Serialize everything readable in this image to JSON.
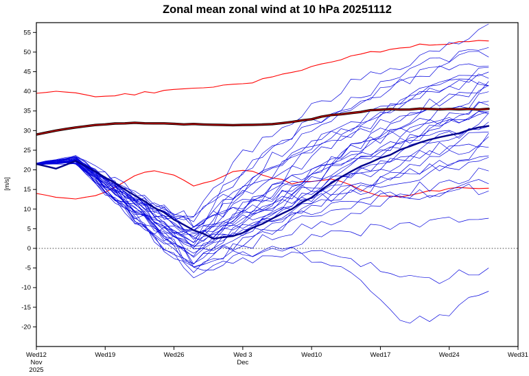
{
  "chart_data": {
    "type": "line",
    "title": "Zonal mean zonal wind at 10 hPa 20251112",
    "ylabel": "[m/s]",
    "xlabel": "",
    "x_unit": "days since 2025-11-12",
    "xlim": [
      0,
      49
    ],
    "ylim": [
      -25,
      57.5
    ],
    "grid": false,
    "zero_line": 0,
    "y_ticks": [
      -20,
      -15,
      -10,
      -5,
      0,
      5,
      10,
      15,
      20,
      25,
      30,
      35,
      40,
      45,
      50,
      55
    ],
    "x_ticks": [
      {
        "day": 0,
        "label": "Wed12",
        "sub": [
          "Nov",
          "2025"
        ]
      },
      {
        "day": 7,
        "label": "Wed19",
        "sub": []
      },
      {
        "day": 14,
        "label": "Wed26",
        "sub": []
      },
      {
        "day": 21,
        "label": "Wed 3",
        "sub": [
          "Dec"
        ]
      },
      {
        "day": 28,
        "label": "Wed10",
        "sub": []
      },
      {
        "day": 35,
        "label": "Wed17",
        "sub": []
      },
      {
        "day": 42,
        "label": "Wed24",
        "sub": []
      },
      {
        "day": 49,
        "label": "Wed31",
        "sub": []
      }
    ],
    "colors": {
      "background": "#ffffff",
      "axis": "#000000",
      "ensemble_member": "#0000dd",
      "ensemble_mean": "#00008b",
      "climatology_mean": "#aa0000",
      "climatology_mean_edge": "#000000",
      "climatology_band": "#ff0000"
    },
    "series": {
      "sample_days_2d": [
        0,
        2,
        4,
        6,
        8,
        10,
        12,
        14,
        16,
        18,
        20,
        22,
        24,
        26,
        28,
        30,
        32,
        34,
        36,
        38,
        40,
        42,
        44,
        46
      ],
      "climatology_mean": [
        29,
        30,
        30.8,
        31.4,
        31.8,
        32,
        31.9,
        31.7,
        31.6,
        31.5,
        31.4,
        31.4,
        31.6,
        32.2,
        33,
        33.9,
        34.6,
        35.1,
        35.4,
        35.5,
        35.5,
        35.4,
        35.5,
        35.5
      ],
      "climatology_upper": [
        39.5,
        40,
        39.6,
        38.6,
        38.9,
        39.4,
        39.9,
        40.3,
        40.8,
        41.2,
        41.7,
        42.5,
        43.6,
        44.8,
        46.2,
        47.6,
        48.8,
        49.8,
        50.7,
        51.5,
        52,
        52.2,
        52.6,
        53
      ],
      "climatology_lower": [
        14,
        13,
        12.6,
        13.4,
        15.4,
        18.3,
        19.8,
        18.6,
        16.2,
        17.3,
        19.4,
        19.8,
        18.2,
        16.6,
        16.9,
        17.4,
        16.2,
        14.2,
        13,
        13.4,
        14.4,
        15.4,
        15.1,
        15
      ],
      "ensemble_mean": [
        21.5,
        20.3,
        22.3,
        19.5,
        16.5,
        13.5,
        10.5,
        7.5,
        4.5,
        2.5,
        3,
        5,
        7.5,
        10,
        13,
        16.5,
        19.5,
        22,
        24,
        26,
        27.5,
        28.7,
        30,
        31.2
      ],
      "member_sample_days": [
        0,
        4,
        8,
        12,
        16,
        20,
        24,
        28,
        32,
        36,
        40,
        44,
        46
      ],
      "ensemble_members": [
        [
          21.6,
          23.0,
          16,
          9,
          8,
          22,
          30,
          36,
          42,
          46,
          50,
          54,
          56
        ],
        [
          21.4,
          22.0,
          14,
          6,
          4,
          18,
          26,
          32,
          38,
          43,
          47,
          51,
          52
        ],
        [
          21.7,
          23.5,
          17,
          8,
          0,
          14,
          23,
          30,
          36,
          41,
          45,
          49,
          50
        ],
        [
          21.3,
          22.5,
          15,
          10,
          7,
          17,
          25,
          32,
          37,
          41,
          45,
          47,
          48
        ],
        [
          21.5,
          21.8,
          13,
          5,
          -1,
          8,
          16,
          23,
          29,
          35,
          40,
          44,
          46
        ],
        [
          21.6,
          23.2,
          16,
          9,
          5,
          13,
          20,
          26,
          31,
          36,
          40,
          43,
          44
        ],
        [
          21.4,
          22.3,
          14,
          6,
          -4,
          4,
          12,
          19,
          25,
          31,
          36,
          40,
          42
        ],
        [
          21.5,
          22.8,
          17,
          11,
          8,
          14,
          19,
          24,
          29,
          33,
          37,
          40,
          41
        ],
        [
          21.6,
          22.1,
          13,
          5,
          1,
          9,
          15,
          21,
          26,
          31,
          35,
          38,
          40
        ],
        [
          21.3,
          21.6,
          12,
          3,
          -6,
          1,
          8,
          15,
          21,
          27,
          31,
          35,
          38
        ],
        [
          21.5,
          23.4,
          16,
          8,
          3,
          9,
          14,
          19,
          24,
          29,
          32,
          35,
          37
        ],
        [
          21.7,
          22.6,
          15,
          9,
          5,
          11,
          15,
          20,
          25,
          29,
          32,
          34,
          36
        ],
        [
          21.4,
          22.0,
          14,
          5,
          -1,
          5,
          11,
          16,
          21,
          26,
          30,
          33,
          35
        ],
        [
          21.6,
          23.1,
          16,
          8,
          2,
          7,
          12,
          17,
          22,
          26,
          30,
          33,
          34
        ],
        [
          21.5,
          22.4,
          15,
          10,
          6,
          10,
          14,
          18,
          22,
          26,
          29,
          31,
          33
        ],
        [
          21.3,
          21.9,
          13,
          4,
          -3,
          3,
          8,
          13,
          18,
          23,
          27,
          30,
          32
        ],
        [
          21.6,
          22.7,
          14,
          6,
          0,
          5,
          9,
          14,
          18,
          22,
          25,
          28,
          30
        ],
        [
          21.4,
          23.3,
          17,
          10,
          4,
          7,
          10,
          14,
          18,
          21,
          24,
          26,
          28
        ],
        [
          21.5,
          22.2,
          12,
          4,
          -5,
          0,
          5,
          10,
          14,
          18,
          21,
          24,
          26
        ],
        [
          21.7,
          22.9,
          15,
          7,
          1,
          4,
          8,
          12,
          15,
          18,
          20,
          22,
          24
        ],
        [
          21.4,
          22.5,
          16,
          11,
          7,
          9,
          11,
          13,
          15,
          17,
          19,
          21,
          22
        ],
        [
          21.6,
          21.7,
          13,
          5,
          -2,
          1,
          4,
          8,
          11,
          14,
          16,
          18,
          20
        ],
        [
          21.5,
          23.0,
          15,
          8,
          3,
          5,
          7,
          9,
          11,
          13,
          14,
          15,
          15
        ],
        [
          21.3,
          22.3,
          12,
          2,
          -6,
          -3,
          0,
          2,
          4,
          6,
          7,
          8,
          8
        ],
        [
          21.6,
          22.6,
          13,
          3,
          -7,
          -4,
          -2,
          -1,
          -3,
          -6,
          -8,
          -6,
          -5
        ],
        [
          21.4,
          21.8,
          14,
          6,
          -4,
          -2,
          0,
          -2,
          -6,
          -16,
          -19,
          -14,
          -12
        ],
        [
          21.5,
          22.4,
          15,
          8,
          2,
          12,
          19,
          26,
          32,
          37,
          41,
          44,
          45
        ],
        [
          21.6,
          22.9,
          16,
          7,
          -1,
          6,
          13,
          19,
          25,
          30,
          34,
          37,
          39
        ],
        [
          21.4,
          22.2,
          14,
          9,
          5,
          8,
          11,
          15,
          19,
          23,
          27,
          30,
          31
        ],
        [
          21.5,
          23.1,
          15,
          6,
          0,
          3,
          7,
          11,
          15,
          19,
          22,
          25,
          27
        ],
        [
          21.7,
          22.7,
          16,
          9,
          3,
          13,
          20,
          26,
          31,
          36,
          40,
          42,
          43
        ],
        [
          21.3,
          22.1,
          13,
          4,
          -3,
          0,
          3,
          6,
          9,
          12,
          14,
          16,
          18
        ]
      ]
    }
  }
}
